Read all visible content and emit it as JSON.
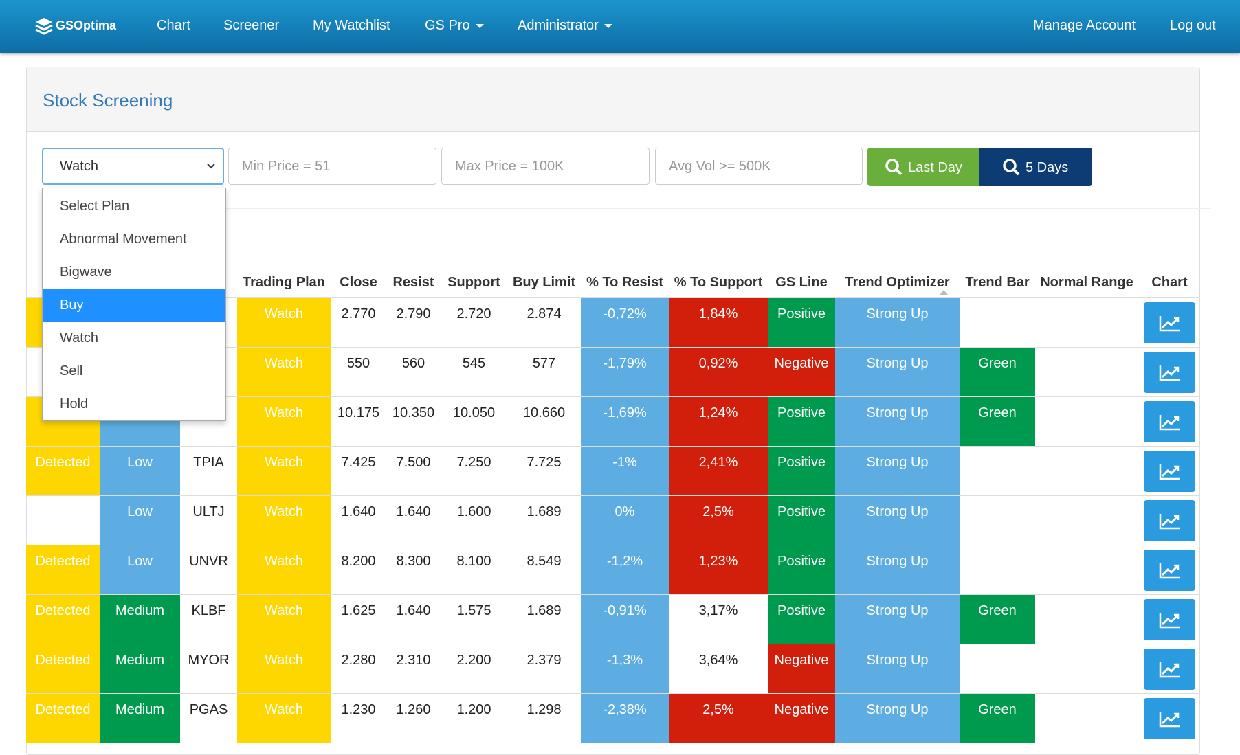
{
  "nav": {
    "brand": "GSOptima",
    "items": [
      "Chart",
      "Screener",
      "My Watchlist",
      "GS Pro",
      "Administrator"
    ],
    "right": [
      "Manage Account",
      "Log out"
    ]
  },
  "panel": {
    "title": "Stock Screening"
  },
  "filters": {
    "plan_selected": "Watch",
    "min_price": "Min Price = 51",
    "max_price": "Max Price = 100K",
    "avg_vol": "Avg Vol >= 500K",
    "buttons": [
      "Last Day",
      "5 Days"
    ]
  },
  "dropdown": {
    "options": [
      "Select Plan",
      "Abnormal Movement",
      "Bigwave",
      "Buy",
      "Watch",
      "Sell",
      "Hold"
    ],
    "highlighted": 3,
    "highlight_color": "#1e90ff"
  },
  "table": {
    "headers": [
      null,
      null,
      null,
      "Trading Plan",
      "Close",
      "Resist",
      "Support",
      "Buy Limit",
      "% To Resist",
      "% To Support",
      "GS Line",
      "Trend Optimizer",
      "Trend Bar",
      "Normal Range",
      "Chart"
    ],
    "rows": [
      {
        "cells": [
          null,
          null,
          null,
          "Watch",
          "2.770",
          "2.790",
          "2.720",
          "2.874",
          "-0,72%",
          "1,84%",
          "Positive",
          "Strong Up",
          null,
          null
        ],
        "colors": [
          "#ffd700",
          null,
          null,
          "#ffd700",
          null,
          null,
          null,
          null,
          "#5dade2",
          "#d21f0c",
          "#009a4e",
          "#5dade2",
          null,
          null
        ]
      },
      {
        "cells": [
          null,
          null,
          null,
          "Watch",
          "550",
          "560",
          "545",
          "577",
          "-1,79%",
          "0,92%",
          "Negative",
          "Strong Up",
          "Green",
          null
        ],
        "colors": [
          null,
          null,
          null,
          "#ffd700",
          null,
          null,
          null,
          null,
          "#5dade2",
          "#d21f0c",
          "#d21f0c",
          "#5dade2",
          "#009a4e",
          null
        ]
      },
      {
        "cells": [
          null,
          null,
          null,
          "Watch",
          "10.175",
          "10.350",
          "10.050",
          "10.660",
          "-1,69%",
          "1,24%",
          "Positive",
          "Strong Up",
          "Green",
          null
        ],
        "colors": [
          "#ffd700",
          "#5dade2",
          null,
          "#ffd700",
          null,
          null,
          null,
          null,
          "#5dade2",
          "#d21f0c",
          "#009a4e",
          "#5dade2",
          "#009a4e",
          null
        ]
      },
      {
        "cells": [
          "Detected",
          "Low",
          "TPIA",
          "Watch",
          "7.425",
          "7.500",
          "7.250",
          "7.725",
          "-1%",
          "2,41%",
          "Positive",
          "Strong Up",
          null,
          null
        ],
        "colors": [
          "#ffd700",
          "#5dade2",
          null,
          "#ffd700",
          null,
          null,
          null,
          null,
          "#5dade2",
          "#d21f0c",
          "#009a4e",
          "#5dade2",
          null,
          null
        ]
      },
      {
        "cells": [
          null,
          "Low",
          "ULTJ",
          "Watch",
          "1.640",
          "1.640",
          "1.600",
          "1.689",
          "0%",
          "2,5%",
          "Positive",
          "Strong Up",
          null,
          null
        ],
        "colors": [
          null,
          "#5dade2",
          null,
          "#ffd700",
          null,
          null,
          null,
          null,
          "#5dade2",
          "#d21f0c",
          "#009a4e",
          "#5dade2",
          null,
          null
        ]
      },
      {
        "cells": [
          "Detected",
          "Low",
          "UNVR",
          "Watch",
          "8.200",
          "8.300",
          "8.100",
          "8.549",
          "-1,2%",
          "1,23%",
          "Positive",
          "Strong Up",
          null,
          null
        ],
        "colors": [
          "#ffd700",
          "#5dade2",
          null,
          "#ffd700",
          null,
          null,
          null,
          null,
          "#5dade2",
          "#d21f0c",
          "#009a4e",
          "#5dade2",
          null,
          null
        ]
      },
      {
        "cells": [
          "Detected",
          "Medium",
          "KLBF",
          "Watch",
          "1.625",
          "1.640",
          "1.575",
          "1.689",
          "-0,91%",
          "3,17%",
          "Positive",
          "Strong Up",
          "Green",
          null
        ],
        "colors": [
          "#ffd700",
          "#009a4e",
          null,
          "#ffd700",
          null,
          null,
          null,
          null,
          "#5dade2",
          null,
          "#009a4e",
          "#5dade2",
          "#009a4e",
          null
        ]
      },
      {
        "cells": [
          "Detected",
          "Medium",
          "MYOR",
          "Watch",
          "2.280",
          "2.310",
          "2.200",
          "2.379",
          "-1,3%",
          "3,64%",
          "Negative",
          "Strong Up",
          null,
          null
        ],
        "colors": [
          "#ffd700",
          "#009a4e",
          null,
          "#ffd700",
          null,
          null,
          null,
          null,
          "#5dade2",
          null,
          "#d21f0c",
          "#5dade2",
          null,
          null
        ]
      },
      {
        "cells": [
          "Detected",
          "Medium",
          "PGAS",
          "Watch",
          "1.230",
          "1.260",
          "1.200",
          "1.298",
          "-2,38%",
          "2,5%",
          "Negative",
          "Strong Up",
          "Green",
          null
        ],
        "colors": [
          "#ffd700",
          "#009a4e",
          null,
          "#ffd700",
          null,
          null,
          null,
          null,
          "#5dade2",
          "#d21f0c",
          "#d21f0c",
          "#5dade2",
          "#009a4e",
          null
        ]
      }
    ]
  }
}
